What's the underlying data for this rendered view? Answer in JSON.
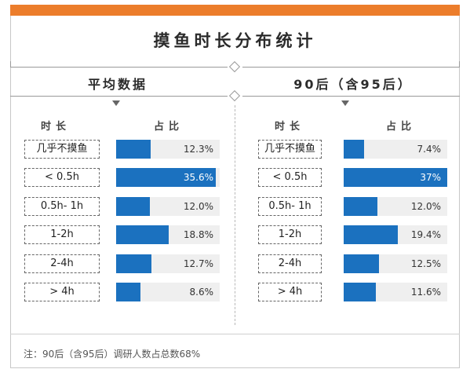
{
  "colors": {
    "accent_bar": "#ec7d2b",
    "bar_fill": "#1b71bf",
    "bar_track": "#efefef"
  },
  "title": "摸鱼时长分布统计",
  "column_headers": {
    "category": "时长",
    "value": "占比"
  },
  "note": "注：90后（含95后）调研人数占总数68%",
  "chart_data": [
    {
      "type": "bar",
      "orientation": "horizontal",
      "title": "平均数据",
      "categories": [
        "几乎不摸鱼",
        "< 0.5h",
        "0.5h- 1h",
        "1-2h",
        "2-4h",
        "> 4h"
      ],
      "values": [
        12.3,
        35.6,
        12.0,
        18.8,
        12.7,
        8.6
      ],
      "labels": [
        "12.3%",
        "35.6%",
        "12.0%",
        "18.8%",
        "12.7%",
        "8.6%"
      ],
      "xlim": [
        0,
        37
      ],
      "unit": "%"
    },
    {
      "type": "bar",
      "orientation": "horizontal",
      "title": "90后（含95后）",
      "categories": [
        "几乎不摸鱼",
        "< 0.5h",
        "0.5h- 1h",
        "1-2h",
        "2-4h",
        "> 4h"
      ],
      "values": [
        7.4,
        37,
        12.0,
        19.4,
        12.5,
        11.6
      ],
      "labels": [
        "7.4%",
        "37%",
        "12.0%",
        "19.4%",
        "12.5%",
        "11.6%"
      ],
      "xlim": [
        0,
        37
      ],
      "unit": "%"
    }
  ]
}
